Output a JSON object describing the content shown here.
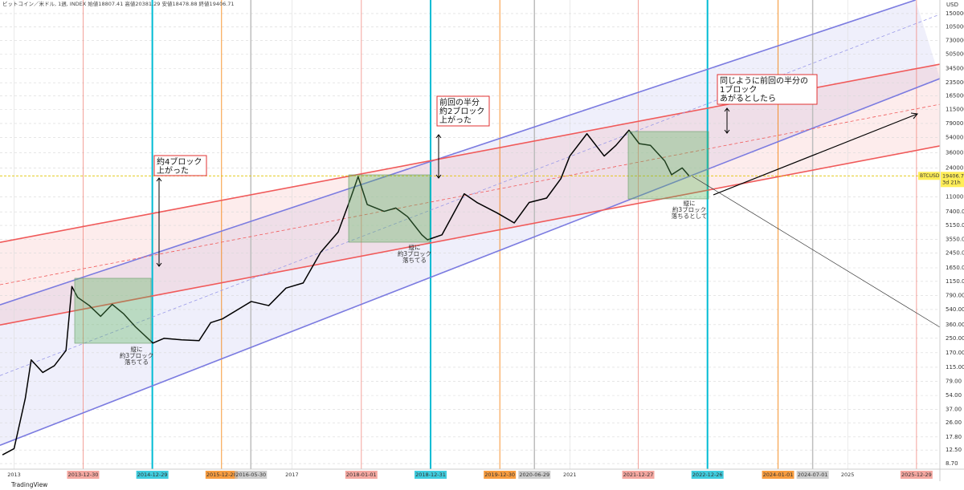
{
  "chart_data": {
    "type": "line",
    "title": "ビットコイン／米ドル, 1週, INDEX 始値18807.41 高値20381.29 安値18478.88 終値19406.71",
    "axis_unit": "USD",
    "log_scale": true,
    "grid": true,
    "xlim": [
      "2012-10-19",
      "2026-05-01"
    ],
    "ylim": [
      7.5,
      2160000
    ],
    "yticks": [
      {
        "value": 1500000,
        "label": "1500000.00"
      },
      {
        "value": 1050000,
        "label": "1050000.00"
      },
      {
        "value": 730000,
        "label": "730000.00"
      },
      {
        "value": 505000,
        "label": "505000.00"
      },
      {
        "value": 345000,
        "label": "345000.00"
      },
      {
        "value": 235000,
        "label": "235000.00"
      },
      {
        "value": 165000,
        "label": "165000.00"
      },
      {
        "value": 115000,
        "label": "115000.00"
      },
      {
        "value": 79000,
        "label": "79000.00"
      },
      {
        "value": 54000,
        "label": "54000.00"
      },
      {
        "value": 36000,
        "label": "36000.00"
      },
      {
        "value": 24000,
        "label": "24000.00"
      },
      {
        "value": 11000,
        "label": "11000.00"
      },
      {
        "value": 7400,
        "label": "7400.00"
      },
      {
        "value": 5150,
        "label": "5150.00"
      },
      {
        "value": 3550,
        "label": "3550.00"
      },
      {
        "value": 2450,
        "label": "2450.00"
      },
      {
        "value": 1650,
        "label": "1650.00"
      },
      {
        "value": 1150,
        "label": "1150.00"
      },
      {
        "value": 790,
        "label": "790.00"
      },
      {
        "value": 540,
        "label": "540.00"
      },
      {
        "value": 360,
        "label": "360.00"
      },
      {
        "value": 250,
        "label": "250.00"
      },
      {
        "value": 170,
        "label": "170.00"
      },
      {
        "value": 115,
        "label": "115.00"
      },
      {
        "value": 79,
        "label": "79.00"
      },
      {
        "value": 54,
        "label": "54.00"
      },
      {
        "value": 37,
        "label": "37.00"
      },
      {
        "value": 26,
        "label": "26.00"
      },
      {
        "value": 17.8,
        "label": "17.80"
      },
      {
        "value": 12.5,
        "label": "12.50"
      },
      {
        "value": 8.7,
        "label": "8.70"
      }
    ],
    "xticks": [
      {
        "value": "2013-01-01",
        "label": "2013"
      },
      {
        "value": "2013-12-30",
        "color": "#f28b82"
      },
      {
        "value": "2014-12-29",
        "color": "#00bcd4"
      },
      {
        "value": "2015-12-28",
        "color": "#f57c00"
      },
      {
        "value": "2016-05-30",
        "color": "#bdbdbd"
      },
      {
        "value": "2017-01-01",
        "label": "2017"
      },
      {
        "value": "2018-01-01",
        "color": "#f28b82"
      },
      {
        "value": "2018-12-31",
        "color": "#00bcd4"
      },
      {
        "value": "2019-12-30",
        "color": "#f57c00"
      },
      {
        "value": "2020-06-29",
        "color": "#bdbdbd"
      },
      {
        "value": "2021-01-01",
        "label": "2021"
      },
      {
        "value": "2021-12-27",
        "color": "#f28b82"
      },
      {
        "value": "2022-12-26",
        "color": "#00bcd4"
      },
      {
        "value": "2024-01-01",
        "color": "#f57c00"
      },
      {
        "value": "2024-07-01",
        "color": "#bdbdbd"
      },
      {
        "value": "2025-01-01",
        "label": "2025"
      },
      {
        "value": "2025-12-29",
        "color": "#f28b82"
      }
    ],
    "series": [
      {
        "color": "#000000",
        "x": [
          "2012-11-01",
          "2013-01-01",
          "2013-03-01",
          "2013-04-01",
          "2013-06-01",
          "2013-08-01",
          "2013-10-01",
          "2013-11-01",
          "2013-12-01",
          "2014-02-01",
          "2014-04-01",
          "2014-06-01",
          "2014-08-01",
          "2014-10-01",
          "2015-01-01",
          "2015-03-01",
          "2015-06-01",
          "2015-09-01",
          "2015-11-01",
          "2016-01-01",
          "2016-06-01",
          "2016-09-01",
          "2016-12-01",
          "2017-03-01",
          "2017-06-01",
          "2017-09-01",
          "2017-11-01",
          "2017-12-15",
          "2018-02-01",
          "2018-05-01",
          "2018-07-01",
          "2018-09-01",
          "2018-11-15",
          "2018-12-15",
          "2019-03-01",
          "2019-06-26",
          "2019-09-01",
          "2019-12-15",
          "2020-03-15",
          "2020-06-01",
          "2020-09-01",
          "2020-11-15",
          "2021-01-01",
          "2021-04-01",
          "2021-07-01",
          "2021-09-01",
          "2021-11-08",
          "2022-01-01",
          "2022-03-01",
          "2022-05-15",
          "2022-06-20",
          "2022-08-15",
          "2022-09-20"
        ],
        "values": [
          11,
          13,
          50,
          140,
          100,
          120,
          180,
          1000,
          750,
          600,
          450,
          620,
          480,
          340,
          220,
          250,
          240,
          235,
          380,
          420,
          670,
          600,
          960,
          1100,
          2500,
          4300,
          10000,
          19000,
          9000,
          7500,
          8200,
          6500,
          4000,
          3500,
          4000,
          12000,
          9500,
          7200,
          5500,
          9500,
          10700,
          18000,
          33000,
          60000,
          33000,
          44000,
          66000,
          46000,
          44000,
          29000,
          20000,
          24000,
          19406.71
        ]
      }
    ],
    "trend_lines": [
      {
        "color": "#7b7be0",
        "dashed": false,
        "x": [
          "2012-10-19",
          "2025-12-24"
        ],
        "values": [
          612,
          2160000
        ]
      },
      {
        "color": "#7b7be0",
        "dashed": false,
        "x": [
          "2012-10-19",
          "2026-05-01"
        ],
        "values": [
          14.2,
          263000
        ]
      },
      {
        "color": "#f05a5a",
        "dashed": false,
        "x": [
          "2012-10-19",
          "2026-05-01"
        ],
        "values": [
          3270,
          387000
        ]
      },
      {
        "color": "#f05a5a",
        "dashed": false,
        "x": [
          "2012-10-19",
          "2026-05-01"
        ],
        "values": [
          357,
          43300
        ]
      },
      {
        "color": "#f05a5a",
        "dashed": true,
        "x": [
          "2012-10-19",
          "2026-05-01"
        ],
        "values": [
          1050,
          132000
        ]
      },
      {
        "color": "#9a9ae8",
        "dashed": true,
        "x": [
          "2012-10-19",
          "2026-05-01"
        ],
        "values": [
          92,
          1470000
        ]
      }
    ],
    "last_price": {
      "symbol": "BTCUSD",
      "value": 19406.71,
      "countdown": "3d 21h"
    },
    "annotations": [
      {
        "lines": [
          "約4ブロック",
          "上がった"
        ]
      },
      {
        "lines": [
          "前回の半分",
          "約2ブロック",
          "上がった"
        ]
      },
      {
        "lines": [
          "同じように前回の半分の",
          "1ブロック",
          "あがるとしたら"
        ]
      },
      {
        "lines": [
          "縦に",
          "約3ブロック",
          "落ちてる"
        ]
      },
      {
        "lines": [
          "縦に",
          "約3ブロック",
          "落ちてる"
        ]
      },
      {
        "lines": [
          "縦に",
          "約3ブロック",
          "落ちるとして"
        ]
      }
    ],
    "footer": "TradingView"
  }
}
